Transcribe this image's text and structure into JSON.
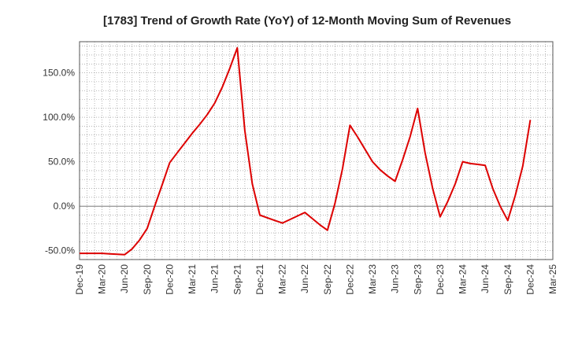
{
  "chart_data": {
    "type": "line",
    "title": "[1783]  Trend of Growth Rate (YoY) of 12-Month Moving Sum of Revenues",
    "x_ticks": [
      "Dec-19",
      "Mar-20",
      "Jun-20",
      "Sep-20",
      "Dec-20",
      "Mar-21",
      "Jun-21",
      "Sep-21",
      "Dec-21",
      "Mar-22",
      "Jun-22",
      "Sep-22",
      "Dec-22",
      "Mar-23",
      "Jun-23",
      "Sep-23",
      "Dec-23",
      "Mar-24",
      "Jun-24",
      "Sep-24",
      "Dec-24",
      "Mar-25"
    ],
    "y_ticks": [
      -50,
      0,
      50,
      100,
      150
    ],
    "y_tick_labels": [
      "-50.0%",
      "0.0%",
      "50.0%",
      "100.0%",
      "150.0%"
    ],
    "ylim": [
      -60,
      185
    ],
    "xlim_month_index": [
      0,
      63
    ],
    "grid": true,
    "line_color": "#dd0000",
    "series": [
      {
        "x": [
          "Dec-19",
          "Jan-20",
          "Feb-20",
          "Mar-20",
          "Apr-20",
          "May-20",
          "Jun-20",
          "Jul-20",
          "Aug-20",
          "Sep-20",
          "Oct-20",
          "Nov-20",
          "Dec-20",
          "Jan-21",
          "Feb-21",
          "Mar-21",
          "Apr-21",
          "May-21",
          "Jun-21",
          "Jul-21",
          "Aug-21",
          "Sep-21",
          "Oct-21",
          "Nov-21",
          "Dec-21",
          "Jan-22",
          "Feb-22",
          "Mar-22",
          "Apr-22",
          "May-22",
          "Jun-22",
          "Jul-22",
          "Aug-22",
          "Sep-22",
          "Oct-22",
          "Nov-22",
          "Dec-22",
          "Jan-23",
          "Feb-23",
          "Mar-23",
          "Apr-23",
          "May-23",
          "Jun-23",
          "Jul-23",
          "Aug-23",
          "Sep-23",
          "Oct-23",
          "Nov-23",
          "Dec-23",
          "Jan-24",
          "Feb-24",
          "Mar-24",
          "Apr-24",
          "May-24",
          "Jun-24",
          "Jul-24",
          "Aug-24",
          "Sep-24",
          "Oct-24",
          "Nov-24",
          "Dec-24"
        ],
        "y": [
          -53,
          -53,
          -53,
          -53,
          -53.5,
          -54,
          -54.5,
          -48,
          -38,
          -25,
          0,
          24,
          49,
          60,
          71,
          82,
          92,
          103,
          116,
          134,
          155,
          178,
          85,
          25,
          -10,
          -13,
          -16,
          -19,
          -15,
          -11,
          -7,
          -14,
          -21,
          -27,
          3,
          42,
          91,
          78,
          64,
          50,
          41,
          34,
          28,
          52,
          78,
          110,
          60,
          20,
          -12,
          5,
          25,
          50,
          48,
          47,
          46,
          20,
          0,
          -16,
          12,
          45,
          97
        ]
      }
    ]
  }
}
